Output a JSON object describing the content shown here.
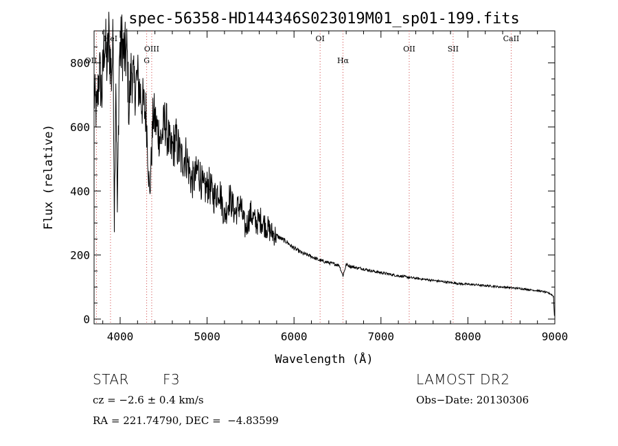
{
  "chart_data": {
    "type": "line",
    "title": "spec-56358-HD144346S023019M01_sp01-199.fits",
    "xlabel": "Wavelength (Å)",
    "ylabel": "Flux (relative)",
    "xlim": [
      3700,
      9000
    ],
    "ylim": [
      -15,
      900
    ],
    "x_ticks": [
      4000,
      5000,
      6000,
      7000,
      8000,
      9000
    ],
    "x_tick_labels": [
      "4000",
      "5000",
      "6000",
      "7000",
      "8000",
      "9000"
    ],
    "y_ticks": [
      0,
      200,
      400,
      600,
      800
    ],
    "y_tick_labels": [
      "0",
      "200",
      "400",
      "600",
      "800"
    ],
    "series": [
      {
        "name": "flux",
        "x": [
          3700,
          3730,
          3760,
          3790,
          3820,
          3850,
          3870,
          3900,
          3920,
          3933,
          3950,
          3968,
          3990,
          4020,
          4050,
          4080,
          4101,
          4130,
          4160,
          4200,
          4250,
          4300,
          4340,
          4380,
          4420,
          4470,
          4520,
          4580,
          4640,
          4700,
          4760,
          4820,
          4861,
          4900,
          4960,
          5020,
          5080,
          5140,
          5200,
          5260,
          5320,
          5380,
          5440,
          5500,
          5560,
          5620,
          5680,
          5740,
          5800,
          5860,
          5920,
          5980,
          6040,
          6100,
          6160,
          6220,
          6280,
          6340,
          6400,
          6460,
          6520,
          6563,
          6600,
          6660,
          6720,
          6780,
          6840,
          6900,
          6960,
          7020,
          7080,
          7140,
          7200,
          7260,
          7320,
          7380,
          7440,
          7500,
          7560,
          7620,
          7680,
          7740,
          7800,
          7860,
          7920,
          7980,
          8040,
          8100,
          8160,
          8220,
          8280,
          8340,
          8400,
          8460,
          8520,
          8580,
          8640,
          8700,
          8760,
          8820,
          8880,
          8940,
          8970,
          8985,
          8995
        ],
        "y": [
          700,
          640,
          780,
          700,
          880,
          790,
          880,
          760,
          860,
          300,
          780,
          330,
          820,
          860,
          820,
          830,
          650,
          790,
          720,
          750,
          680,
          640,
          380,
          640,
          600,
          560,
          620,
          520,
          560,
          500,
          510,
          430,
          440,
          470,
          400,
          420,
          380,
          410,
          320,
          380,
          330,
          360,
          280,
          330,
          300,
          310,
          290,
          270,
          260,
          250,
          240,
          225,
          215,
          205,
          200,
          193,
          185,
          180,
          176,
          172,
          168,
          135,
          170,
          164,
          160,
          158,
          154,
          150,
          147,
          144,
          141,
          138,
          135,
          133,
          130,
          128,
          126,
          124,
          122,
          120,
          118,
          116,
          114,
          112,
          110,
          109,
          108,
          107,
          105,
          104,
          103,
          101,
          100,
          99,
          97,
          96,
          94,
          92,
          90,
          88,
          85,
          80,
          75,
          70,
          10
        ]
      }
    ],
    "line_markers": [
      {
        "label": "OII",
        "x": 3727
      },
      {
        "label": "HeI",
        "x": 3889
      },
      {
        "label": "OIII",
        "x": 4363
      },
      {
        "label": "G",
        "x": 4305
      },
      {
        "label": "OI",
        "x": 6300
      },
      {
        "label": "Hα",
        "x": 6563
      },
      {
        "label": "OII",
        "x": 7325
      },
      {
        "label": "SII",
        "x": 7830
      },
      {
        "label": "CaII",
        "x": 8498
      }
    ]
  },
  "info": {
    "class_label": "STAR",
    "subclass": "F3",
    "survey": "LAMOST DR2",
    "redshift_line": "cz = −2.6 ± 0.4 km/s",
    "obs_date": "Obs−Date: 20130306",
    "coords_line": "RA = 221.74790, DEC =  −4.83599"
  }
}
